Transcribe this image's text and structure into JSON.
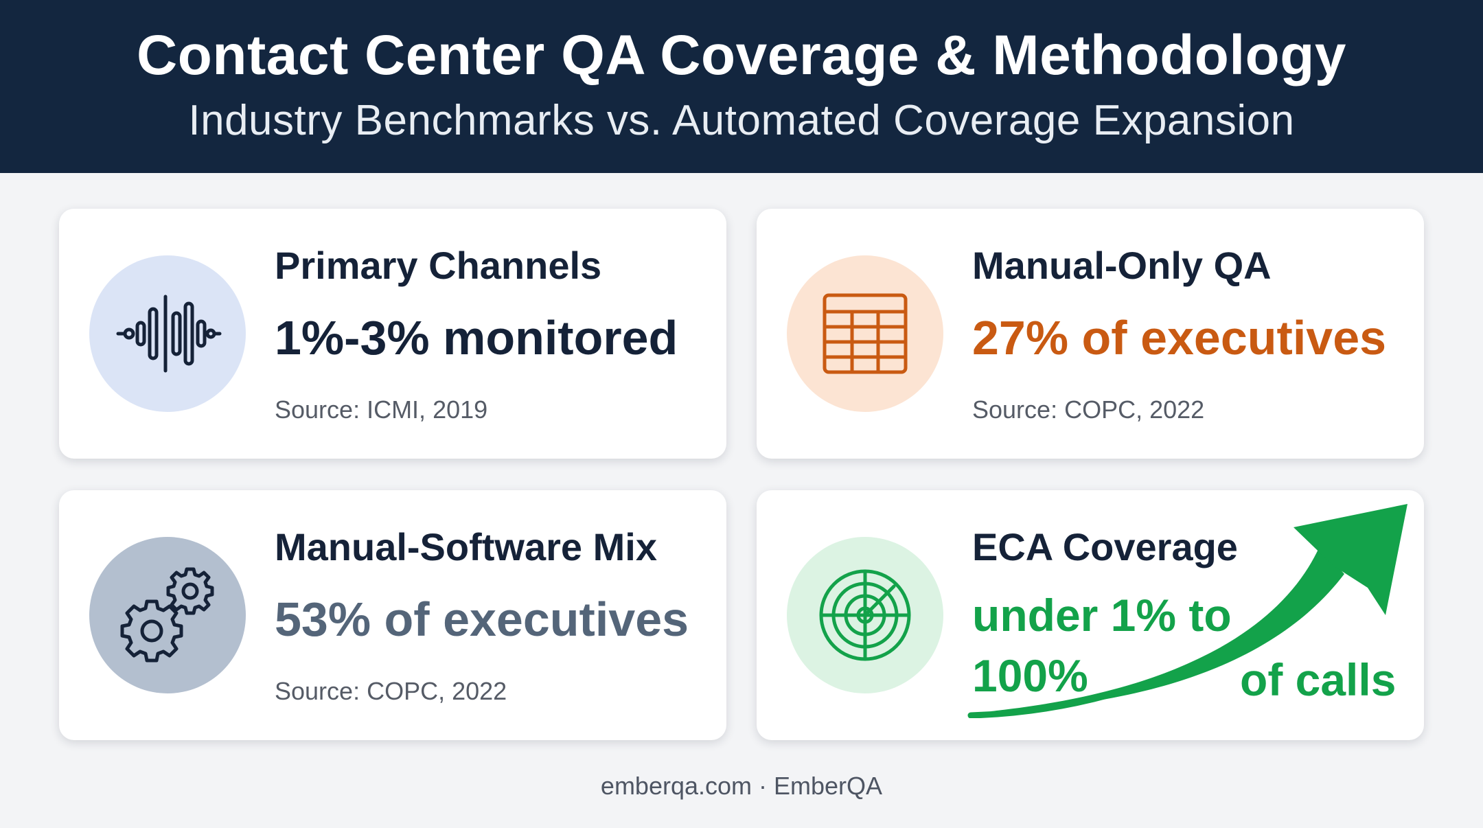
{
  "header": {
    "title": "Contact Center QA Coverage & Methodology",
    "subtitle": "Industry Benchmarks vs. Automated Coverage Expansion"
  },
  "cards": [
    {
      "title": "Primary Channels",
      "value": "1%-3% monitored",
      "source": "Source: ICMI, 2019",
      "icon": "waveform-icon",
      "icon_bg": "#dbe4f6",
      "value_color": "#152238"
    },
    {
      "title": "Manual-Only QA",
      "value": "27% of executives",
      "source": "Source: COPC, 2022",
      "icon": "spreadsheet-icon",
      "icon_bg": "#fce4d3",
      "value_color": "#c95a12"
    },
    {
      "title": "Manual-Software Mix",
      "value": "53% of executives",
      "source": "Source: COPC, 2022",
      "icon": "gears-icon",
      "icon_bg": "#b3bfcf",
      "value_color": "#546579"
    },
    {
      "title": "ECA Coverage",
      "value_line1": "under 1% to",
      "value_line2": "100%",
      "value_line3": "of calls",
      "icon": "radar-target-icon",
      "icon_bg": "#dcf3e3",
      "value_color": "#13a24a"
    }
  ],
  "footer": {
    "text": "emberqa.com · EmberQA"
  }
}
